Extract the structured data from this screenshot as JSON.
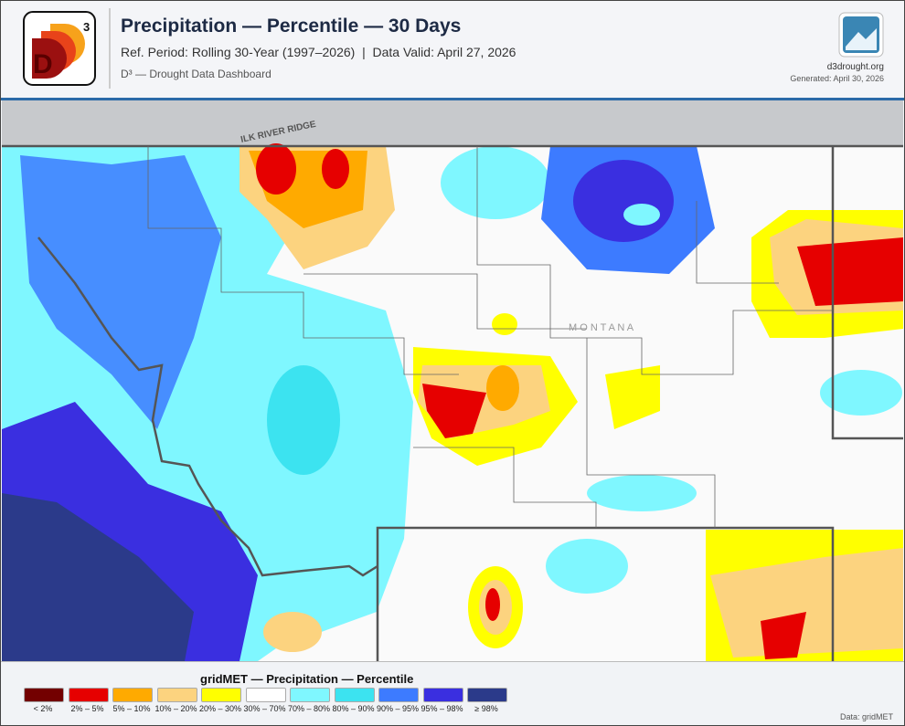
{
  "header": {
    "logo": {
      "letter": "D",
      "superscript": "3"
    },
    "title": "Precipitation — Percentile — 30 Days",
    "subtitle": "Ref. Period: Rolling 30-Year (1997–2026)  |  Data Valid: April 27, 2026",
    "brand": "D³ — Drought Data Dashboard",
    "site": "d3drought.org",
    "generated": "Generated: April 30, 2026"
  },
  "map": {
    "labels": [
      "ILK RIVER RIDGE",
      "M O N T A N A"
    ]
  },
  "legend": {
    "title": "gridMET — Precipitation — Percentile",
    "items": [
      {
        "label": "< 2%",
        "color": "#730000"
      },
      {
        "label": "2% – 5%",
        "color": "#e60000"
      },
      {
        "label": "5% – 10%",
        "color": "#ffaa00"
      },
      {
        "label": "10% – 20%",
        "color": "#fcd37f"
      },
      {
        "label": "20% – 30%",
        "color": "#ffff00"
      },
      {
        "label": "30% – 70%",
        "color": "#ffffff"
      },
      {
        "label": "70% – 80%",
        "color": "#7ff7ff"
      },
      {
        "label": "80% – 90%",
        "color": "#3ce3f0"
      },
      {
        "label": "90% – 95%",
        "color": "#3d7bff"
      },
      {
        "label": "95% – 98%",
        "color": "#3a2fe0"
      },
      {
        "label": "≥ 98%",
        "color": "#2b3a8a"
      }
    ]
  },
  "footer": {
    "source": "Data: gridMET"
  }
}
